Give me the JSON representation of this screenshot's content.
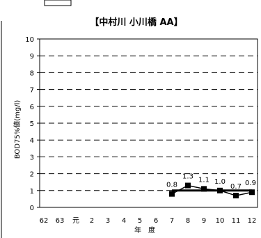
{
  "chart_data": {
    "type": "line",
    "title": "【中村川 小川橋 AA】",
    "xlabel": "年　度",
    "ylabel": "BOD75%値(mg/l)",
    "categories": [
      "62",
      "63",
      "元",
      "2",
      "3",
      "4",
      "5",
      "6",
      "7",
      "8",
      "9",
      "10",
      "11",
      "12"
    ],
    "ylim": [
      0,
      10
    ],
    "yticks": [
      "0",
      "1",
      "2",
      "3",
      "4",
      "5",
      "6",
      "7",
      "8",
      "9",
      "10"
    ],
    "grid": "dashed horizontal",
    "series": [
      {
        "values": [
          null,
          null,
          null,
          null,
          null,
          null,
          null,
          null,
          0.8,
          1.3,
          1.1,
          1.0,
          0.7,
          0.9
        ],
        "labels": [
          "",
          "",
          "",
          "",
          "",
          "",
          "",
          "",
          "0.8",
          "1.3",
          "1.1",
          "1.0",
          "0.7",
          "0.9"
        ],
        "color": "#000000"
      },
      {
        "values": [
          null,
          null,
          null,
          null,
          null,
          null,
          null,
          null,
          1.0,
          1.0,
          1.0,
          1.0,
          1.0,
          1.0
        ],
        "color": "#000000"
      }
    ]
  }
}
